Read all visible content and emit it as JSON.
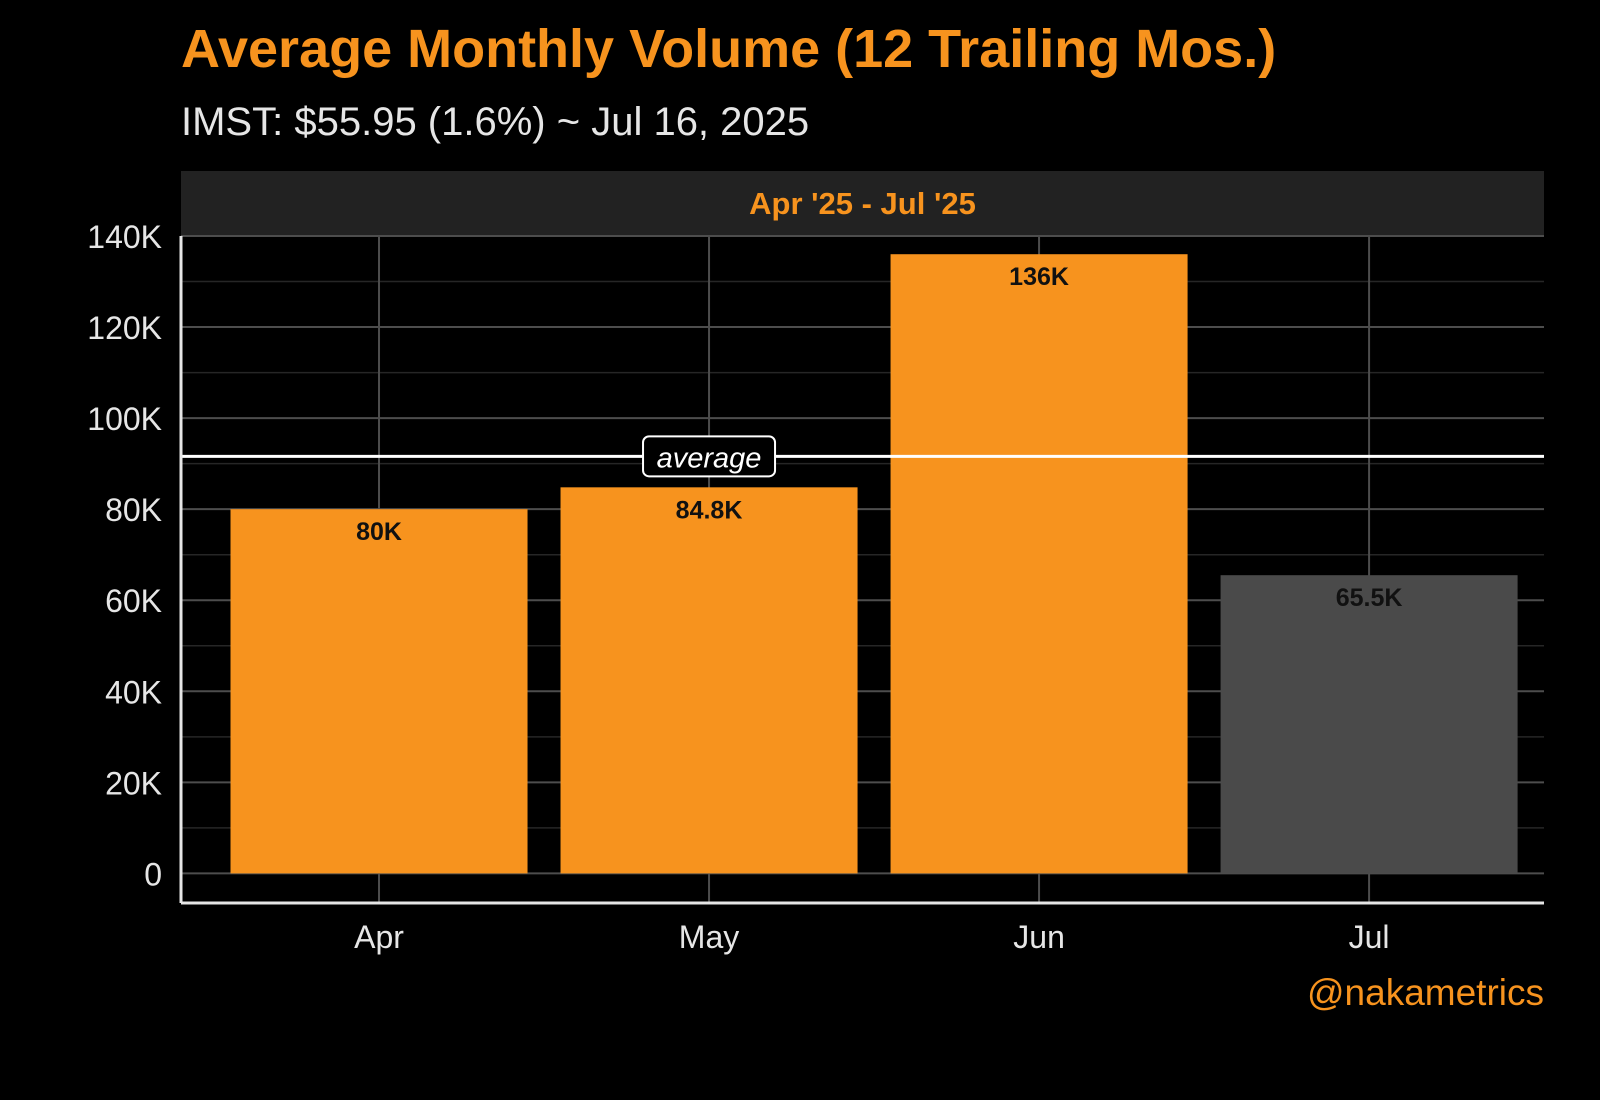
{
  "title": "Average Monthly Volume (12 Trailing Mos.)",
  "subtitle": "IMST: $55.95 (1.6%) ~ Jul 16, 2025",
  "watermark": "@nakametrics",
  "colors": {
    "background": "#000000",
    "accent": "#f7931e",
    "bar_current": "#4a4a4a",
    "strip": "#222222",
    "grid_major": "#4d4d4d",
    "grid_minor": "#262626",
    "text": "#e6e6e6"
  },
  "chart_data": {
    "type": "bar",
    "facet_label": "Apr '25 - Jul '25",
    "categories": [
      "Apr",
      "May",
      "Jun",
      "Jul"
    ],
    "values": [
      80000,
      84800,
      136000,
      65500
    ],
    "value_labels": [
      "80K",
      "84.8K",
      "136K",
      "65.5K"
    ],
    "bar_colors": [
      "#f7931e",
      "#f7931e",
      "#f7931e",
      "#4a4a4a"
    ],
    "ylim": [
      -6500,
      140000
    ],
    "yticks": [
      0,
      20000,
      40000,
      60000,
      80000,
      100000,
      120000,
      140000
    ],
    "ytick_labels": [
      "0",
      "20K",
      "40K",
      "60K",
      "80K",
      "100K",
      "120K",
      "140K"
    ],
    "average": 91600,
    "average_label": "average",
    "grid": true,
    "legend": "none"
  }
}
